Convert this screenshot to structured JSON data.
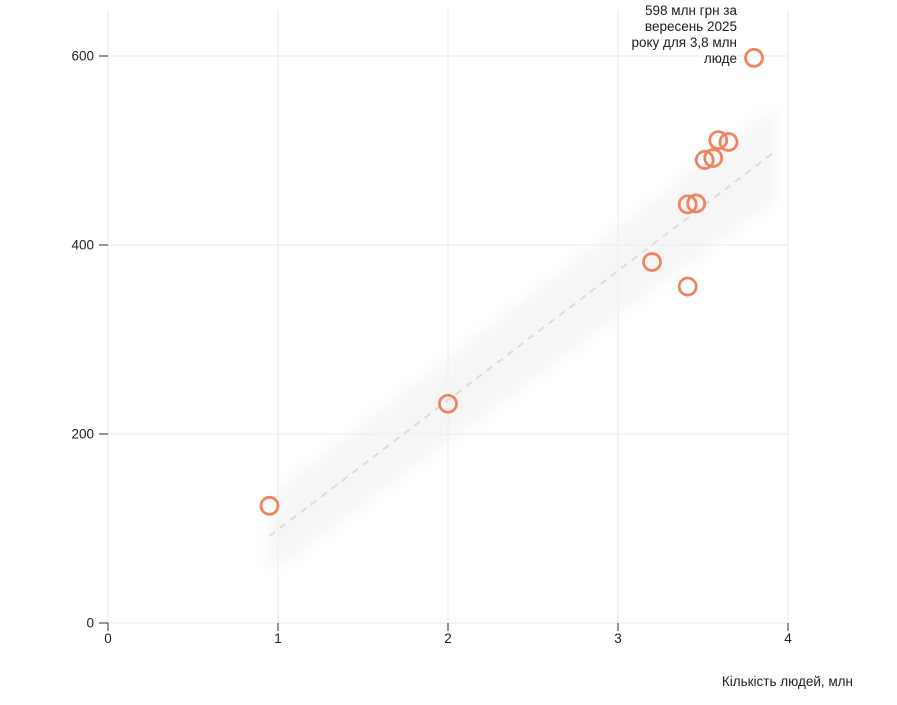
{
  "chart_data": {
    "type": "scatter",
    "title": "",
    "xlabel": "Кількість людей, млн",
    "ylabel": "",
    "xlim": [
      0,
      4
    ],
    "ylim": [
      0,
      650
    ],
    "grid": true,
    "x_ticks": [
      0,
      1,
      2,
      3,
      4
    ],
    "y_ticks": [
      0,
      200,
      400,
      600
    ],
    "points": [
      {
        "x": 0.95,
        "y": 124
      },
      {
        "x": 2.0,
        "y": 232
      },
      {
        "x": 3.2,
        "y": 382
      },
      {
        "x": 3.41,
        "y": 356
      },
      {
        "x": 3.41,
        "y": 443
      },
      {
        "x": 3.46,
        "y": 444
      },
      {
        "x": 3.51,
        "y": 490
      },
      {
        "x": 3.56,
        "y": 492
      },
      {
        "x": 3.59,
        "y": 511
      },
      {
        "x": 3.65,
        "y": 509
      },
      {
        "x": 3.8,
        "y": 598
      }
    ],
    "trend_line": {
      "style": "dashed",
      "x1": 0.95,
      "y1": 92,
      "x2": 3.93,
      "y2": 500
    },
    "confidence_band": [
      [
        0.95,
        135
      ],
      [
        3.93,
        548
      ],
      [
        3.93,
        448
      ],
      [
        0.95,
        51
      ]
    ],
    "annotation": {
      "lines": [
        "598 млн грн за",
        "вересень 2025",
        "року для 3,8 млн",
        "люде"
      ],
      "anchor_point": {
        "x": 3.8,
        "y": 598
      }
    },
    "colors": {
      "point_stroke": "#ef855f",
      "gridline": "#e9e9e9",
      "axis_tick": "#2b2b2b",
      "tick_label": "#222222",
      "trend": "#dcdcdc",
      "band": "#f1f1f1",
      "annotation_text": "#1d1d1d",
      "axis_label_text": "#222222"
    }
  }
}
